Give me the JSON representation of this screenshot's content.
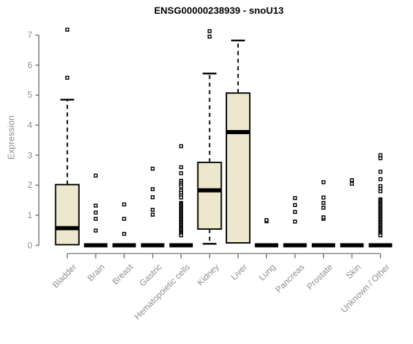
{
  "chart_data": {
    "type": "boxplot",
    "title": "ENSG00000238939 - snoU13",
    "ylabel": "Expression",
    "xlabel": "",
    "ylim": [
      0,
      7
    ],
    "yticks": [
      0,
      1,
      2,
      3,
      4,
      5,
      6,
      7
    ],
    "grid": false,
    "legend": "none",
    "colors": {
      "box_fill": "#ede8cd",
      "box_border": "#000000",
      "median": "#000000",
      "whisker": "#000000",
      "outlier_fill": "#ffffff",
      "axis_line": "#7d7d7d",
      "axis_text": "#8e8e8e",
      "title_text": "#000000",
      "background": "#ffffff"
    },
    "categories": [
      "Bladder",
      "Brain",
      "Breast",
      "Gastric",
      "Hematopoietic cells",
      "Kidney",
      "Liver",
      "Lung",
      "Pancreas",
      "Prostate",
      "Skin",
      "Unknown / Other"
    ],
    "series": [
      {
        "name": "Bladder",
        "whisker_low": 0.02,
        "q1": 0.02,
        "median": 0.57,
        "q3": 2.02,
        "whisker_high": 4.85,
        "outliers": [
          5.58,
          7.18
        ]
      },
      {
        "name": "Brain",
        "whisker_low": 0,
        "q1": 0,
        "median": 0,
        "q3": 0,
        "whisker_high": 0,
        "outliers": [
          0.49,
          0.88,
          1.09,
          1.32,
          2.32
        ]
      },
      {
        "name": "Breast",
        "whisker_low": 0,
        "q1": 0,
        "median": 0,
        "q3": 0,
        "whisker_high": 0,
        "outliers": [
          0.38,
          0.88,
          1.36
        ]
      },
      {
        "name": "Gastric",
        "whisker_low": 0,
        "q1": 0,
        "median": 0,
        "q3": 0,
        "whisker_high": 0,
        "outliers": [
          1.02,
          1.18,
          1.6,
          1.87,
          2.55
        ]
      },
      {
        "name": "Hematopoietic cells",
        "whisker_low": 0,
        "q1": 0,
        "median": 0,
        "q3": 0,
        "whisker_high": 0,
        "outliers": [
          3.3,
          2.6,
          2.4,
          2.15,
          2.08,
          2.02,
          1.96,
          1.82,
          1.74,
          1.66,
          1.59,
          1.41,
          1.37,
          1.33,
          1.29,
          1.25,
          1.21,
          1.17,
          1.13,
          1.09,
          1.05,
          1.01,
          0.97,
          0.93,
          0.89,
          0.85,
          0.81,
          0.77,
          0.73,
          0.69,
          0.65,
          0.61,
          0.57,
          0.53,
          0.49,
          0.45,
          0.41,
          0.37,
          0.33
        ]
      },
      {
        "name": "Kidney",
        "whisker_low": 0.05,
        "q1": 0.54,
        "median": 1.83,
        "q3": 2.76,
        "whisker_high": 5.72,
        "outliers": [
          6.95,
          7.13
        ]
      },
      {
        "name": "Liver",
        "whisker_low": 0.08,
        "q1": 0.08,
        "median": 3.77,
        "q3": 5.07,
        "whisker_high": 6.82,
        "outliers": []
      },
      {
        "name": "Lung",
        "whisker_low": 0,
        "q1": 0,
        "median": 0,
        "q3": 0,
        "whisker_high": 0,
        "outliers": [
          0.8,
          0.84
        ]
      },
      {
        "name": "Pancreas",
        "whisker_low": 0,
        "q1": 0,
        "median": 0,
        "q3": 0,
        "whisker_high": 0,
        "outliers": [
          0.79,
          1.11,
          1.34,
          1.57
        ]
      },
      {
        "name": "Prostate",
        "whisker_low": 0,
        "q1": 0,
        "median": 0,
        "q3": 0,
        "whisker_high": 0,
        "outliers": [
          0.88,
          0.93,
          1.25,
          1.41,
          1.59,
          2.1
        ]
      },
      {
        "name": "Skin",
        "whisker_low": 0,
        "q1": 0,
        "median": 0,
        "q3": 0,
        "whisker_high": 0,
        "outliers": [
          2.05,
          2.17
        ]
      },
      {
        "name": "Unknown / Other",
        "whisker_low": 0,
        "q1": 0,
        "median": 0,
        "q3": 0,
        "whisker_high": 0,
        "outliers": [
          3.0,
          2.9,
          2.45,
          2.2,
          1.97,
          1.88,
          1.8,
          1.53,
          1.49,
          1.45,
          1.41,
          1.37,
          1.33,
          1.29,
          1.25,
          1.21,
          1.17,
          1.13,
          1.09,
          1.05,
          1.01,
          0.97,
          0.93,
          0.89,
          0.85,
          0.81,
          0.77,
          0.73,
          0.69,
          0.65,
          0.61,
          0.57,
          0.53,
          0.49,
          0.45,
          0.41,
          0.37,
          0.33
        ]
      }
    ]
  }
}
